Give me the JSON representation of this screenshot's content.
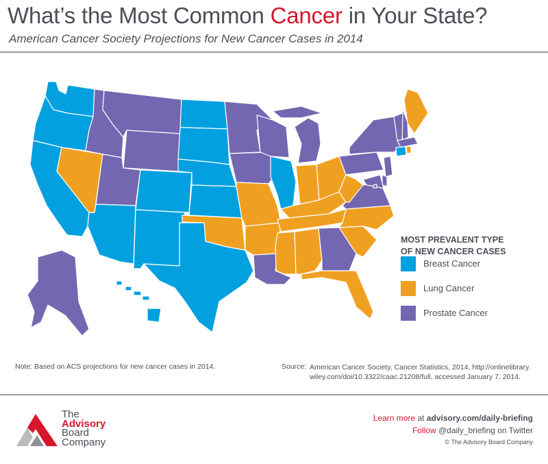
{
  "header": {
    "title_before": "What’s the Most Common ",
    "title_accent": "Cancer",
    "title_after": " in Your State?",
    "subtitle": "American Cancer Society Projections for New Cancer Cases in 2014"
  },
  "colors": {
    "breast": "#03a0e0",
    "lung": "#f0a020",
    "prostate": "#7267b0",
    "accent": "#d7152d",
    "border": "#ffffff"
  },
  "legend": {
    "title_line1": "MOST PREVALENT TYPE",
    "title_line2": "OF NEW CANCER CASES",
    "items": [
      {
        "key": "breast",
        "label": "Breast Cancer"
      },
      {
        "key": "lung",
        "label": "Lung Cancer"
      },
      {
        "key": "prostate",
        "label": "Prostate Cancer"
      }
    ]
  },
  "states": {
    "WA": "breast",
    "OR": "breast",
    "CA": "breast",
    "NV": "lung",
    "ID": "prostate",
    "MT": "prostate",
    "WY": "prostate",
    "UT": "prostate",
    "AZ": "breast",
    "CO": "breast",
    "NM": "breast",
    "ND": "breast",
    "SD": "breast",
    "NE": "breast",
    "KS": "breast",
    "OK": "lung",
    "TX": "breast",
    "MN": "prostate",
    "IA": "prostate",
    "MO": "lung",
    "AR": "lung",
    "LA": "prostate",
    "WI": "prostate",
    "IL": "breast",
    "MI": "prostate",
    "IN": "lung",
    "OH": "lung",
    "KY": "lung",
    "TN": "lung",
    "MS": "lung",
    "AL": "lung",
    "GA": "prostate",
    "FL": "lung",
    "SC": "lung",
    "NC": "lung",
    "VA": "prostate",
    "WV": "lung",
    "PA": "prostate",
    "NY": "prostate",
    "ME": "lung",
    "NH": "prostate",
    "VT": "prostate",
    "MA": "prostate",
    "CT": "breast",
    "RI": "lung",
    "NJ": "prostate",
    "DE": "prostate",
    "MD": "prostate",
    "DC": "prostate",
    "AK": "prostate",
    "HI": "breast"
  },
  "notes": {
    "note": "Note:  Based on ACS projections for new cancer cases in 2014.",
    "source_label": "Source:",
    "source_text": "American Cancer Society, Cancer Statistics, 2014, http://onlinelibrary. wiley.com/doi/10.3322/caac.21208/full, accessed January 7, 2014."
  },
  "footer": {
    "logo_line1": "The",
    "logo_line2": "Advisory",
    "logo_line3": "Board",
    "logo_line4": "Company",
    "learn_more": "Learn more",
    "at": " at ",
    "link": "advisory.com/daily-briefing",
    "follow": "Follow",
    "handle": " @daily_briefing on Twitter",
    "copyright": "© The Advisory Board Company"
  }
}
